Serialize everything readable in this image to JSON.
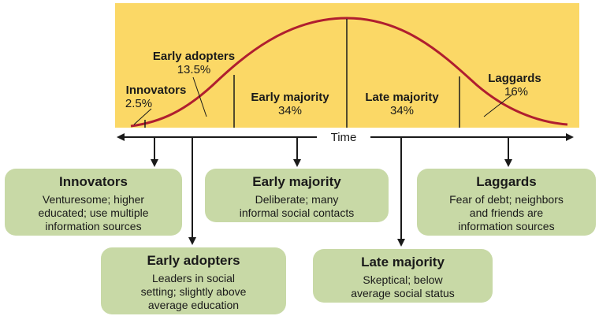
{
  "diagram": {
    "accent_colors": {
      "panel": "#fbd866",
      "curve": "#b01e2f",
      "box": "#c8d9a6"
    },
    "time_label": "Time",
    "curve_labels": {
      "innovators": {
        "name": "Innovators",
        "pct": "2.5%"
      },
      "early_adopters": {
        "name": "Early adopters",
        "pct": "13.5%"
      },
      "early_majority": {
        "name": "Early majority",
        "pct": "34%"
      },
      "late_majority": {
        "name": "Late majority",
        "pct": "34%"
      },
      "laggards": {
        "name": "Laggards",
        "pct": "16%"
      }
    },
    "boxes": {
      "innovators": {
        "title": "Innovators",
        "lines": [
          "Venturesome; higher",
          "educated; use multiple",
          "information sources"
        ]
      },
      "early_adopters": {
        "title": "Early adopters",
        "lines": [
          "Leaders in social",
          "setting; slightly above",
          "average education"
        ]
      },
      "early_majority": {
        "title": "Early majority",
        "lines": [
          "Deliberate; many",
          "informal social contacts"
        ]
      },
      "late_majority": {
        "title": "Late majority",
        "lines": [
          "Skeptical; below",
          "average social status"
        ]
      },
      "laggards": {
        "title": "Laggards",
        "lines": [
          "Fear of debt; neighbors",
          "and friends are",
          "information sources"
        ]
      }
    }
  }
}
